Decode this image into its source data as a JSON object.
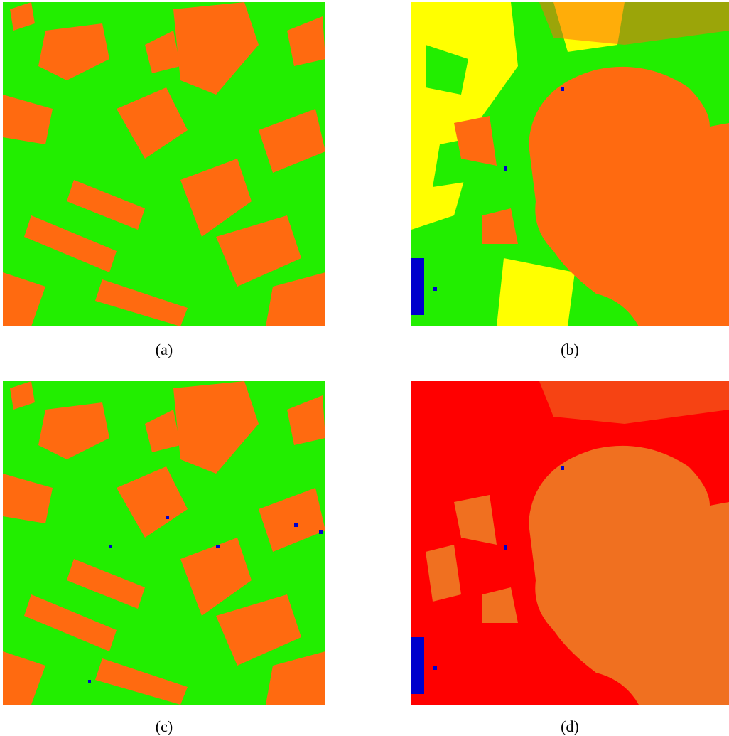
{
  "figure": {
    "panels": [
      {
        "caption": "(a)"
      },
      {
        "caption": "(b)"
      },
      {
        "caption": "(c)"
      },
      {
        "caption": "(d)"
      }
    ]
  }
}
